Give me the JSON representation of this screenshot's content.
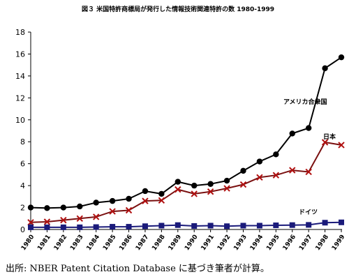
{
  "title": "図３ 米国特許商標局が発行した情報技術関連特許の数 1980-1999",
  "source": "出所: NBER Patent Citation Database に基づき筆者が計算。",
  "chart_data": {
    "type": "line",
    "title": "図３ 米国特許商標局が発行した情報技術関連特許の数 1980-1999",
    "xlabel": "",
    "ylabel": "",
    "ylim": [
      0,
      18
    ],
    "yticks": [
      0,
      2,
      4,
      6,
      8,
      10,
      12,
      14,
      16,
      18
    ],
    "grid": false,
    "categories": [
      "1980",
      "1981",
      "1982",
      "1983",
      "1984",
      "1985",
      "1986",
      "1987",
      "1988",
      "1989",
      "1990",
      "1991",
      "1992",
      "1993",
      "1994",
      "1995",
      "1996",
      "1997",
      "1998",
      "1999"
    ],
    "series": [
      {
        "name": "アメリカ合衆国",
        "marker": "circle",
        "color": "#000000",
        "values": [
          2.0,
          1.95,
          2.0,
          2.1,
          2.45,
          2.6,
          2.8,
          3.5,
          3.25,
          4.35,
          4.0,
          4.15,
          4.45,
          5.35,
          6.2,
          6.85,
          8.75,
          9.25,
          14.7,
          15.7
        ]
      },
      {
        "name": "日本",
        "marker": "x",
        "color": "#7a1010",
        "values": [
          0.65,
          0.7,
          0.85,
          1.0,
          1.15,
          1.65,
          1.75,
          2.6,
          2.65,
          3.65,
          3.25,
          3.45,
          3.75,
          4.1,
          4.75,
          4.95,
          5.4,
          5.25,
          7.95,
          7.7
        ]
      },
      {
        "name": "ドイツ",
        "marker": "square",
        "color": "#1a1a7a",
        "values": [
          0.2,
          0.2,
          0.2,
          0.2,
          0.22,
          0.25,
          0.25,
          0.3,
          0.35,
          0.4,
          0.32,
          0.35,
          0.3,
          0.35,
          0.35,
          0.38,
          0.4,
          0.42,
          0.62,
          0.65
        ]
      }
    ]
  }
}
